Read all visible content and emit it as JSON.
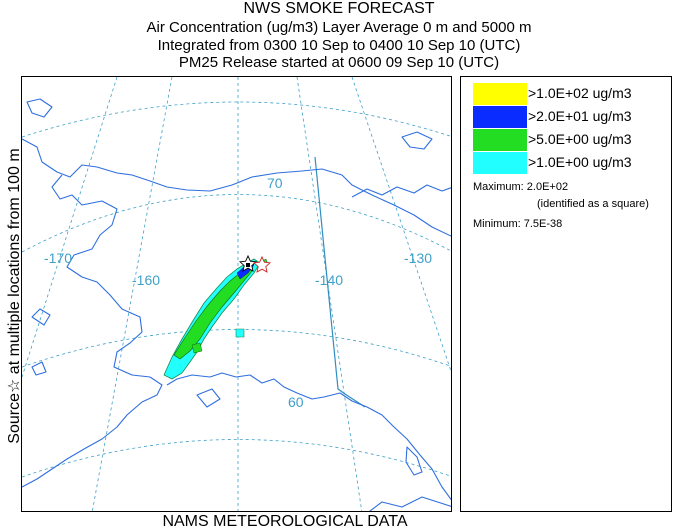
{
  "title": {
    "line1": "NWS SMOKE FORECAST",
    "line2": "Air Concentration (ug/m3) Layer Average    0 m and  5000 m",
    "line3": "Integrated from 0300 10 Sep to 0400 10 Sep 10 (UTC)",
    "line4": "PM25 Release started at 0600 09 Sep 10 (UTC)"
  },
  "side_label": "Source☆  at multiple locations    from   100 m",
  "footer": "NAMS METEOROLOGICAL DATA",
  "map": {
    "grid_labels": {
      "lon_170": "-170",
      "lon_160": "-160",
      "lon_140": "-140",
      "lon_130": "-130",
      "lat_70": "70",
      "lat_60": "60"
    },
    "colors": {
      "graticule": "#3fa0c8",
      "coastline": "#2f6fe0",
      "border": "#2f8ec0"
    }
  },
  "legend": {
    "items": [
      {
        "label": ">1.0E+02 ug/m3",
        "color": "#ffff00"
      },
      {
        "label": ">2.0E+01 ug/m3",
        "color": "#0a2cff"
      },
      {
        "label": ">5.0E+00 ug/m3",
        "color": "#22dd22"
      },
      {
        "label": ">1.0E+00 ug/m3",
        "color": "#22ffff"
      }
    ],
    "maximum_label": "Maximum: 2.0E+02",
    "maximum_note": "(identified as a square)",
    "minimum_label": "Minimum: 7.5E-38"
  }
}
